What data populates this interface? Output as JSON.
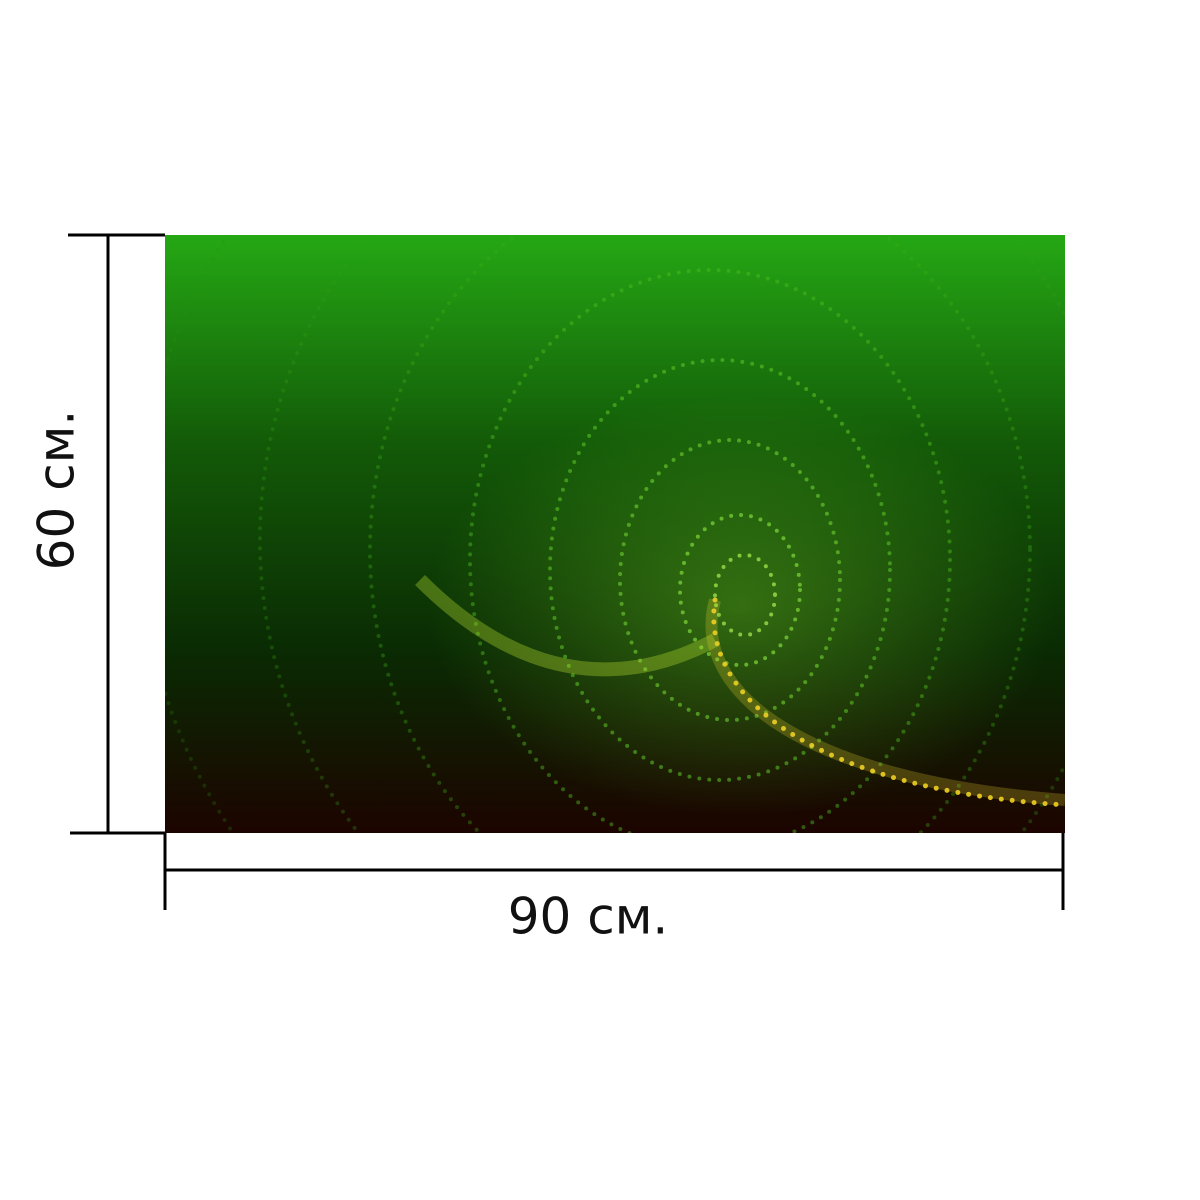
{
  "dimensions": {
    "width_label": "90 см.",
    "height_label": "60 см."
  }
}
